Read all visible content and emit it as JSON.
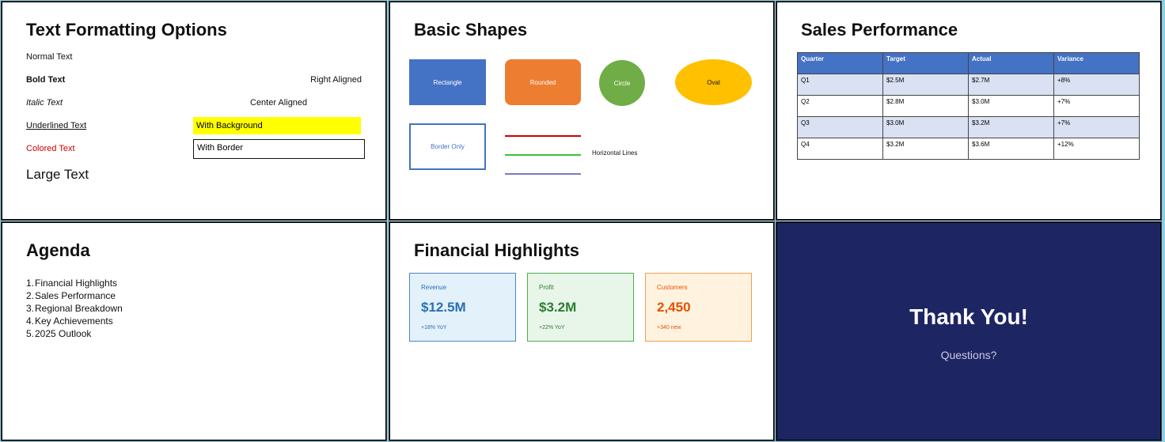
{
  "slide1": {
    "title": "Text Formatting Options",
    "normal": "Normal Text",
    "bold": "Bold Text",
    "italic": "Italic Text",
    "underlined": "Underlined Text",
    "colored": "Colored Text",
    "large": "Large Text",
    "right_aligned": "Right Aligned",
    "center_aligned": "Center Aligned",
    "with_background": "With Background",
    "with_border": "With Border"
  },
  "slide2": {
    "title": "Basic Shapes",
    "rectangle": "Rectangle",
    "rounded": "Rounded",
    "circle": "Circle",
    "oval": "Oval",
    "border_only": "Border Only",
    "horizontal_lines": "Horizontal Lines"
  },
  "slide3": {
    "title": "Sales Performance",
    "headers": [
      "Quarter",
      "Target",
      "Actual",
      "Variance"
    ],
    "rows": [
      [
        "Q1",
        "$2.5M",
        "$2.7M",
        "+8%"
      ],
      [
        "Q2",
        "$2.8M",
        "$3.0M",
        "+7%"
      ],
      [
        "Q3",
        "$3.0M",
        "$3.2M",
        "+7%"
      ],
      [
        "Q4",
        "$3.2M",
        "$3.6M",
        "+12%"
      ]
    ]
  },
  "slide4": {
    "title": "Agenda",
    "items": [
      {
        "num": "1.",
        "text": "Financial Highlights"
      },
      {
        "num": "2.",
        "text": "Sales Performance"
      },
      {
        "num": "3.",
        "text": "Regional Breakdown"
      },
      {
        "num": "4.",
        "text": "Key Achievements"
      },
      {
        "num": "5.",
        "text": "2025 Outlook"
      }
    ]
  },
  "slide5": {
    "title": "Financial Highlights",
    "cards": [
      {
        "label": "Revenue",
        "value": "$12.5M",
        "sub": "+18% YoY",
        "color": "#2a6fb5"
      },
      {
        "label": "Profit",
        "value": "$3.2M",
        "sub": "+22% YoY",
        "color": "#2e7d32"
      },
      {
        "label": "Customers",
        "value": "2,450",
        "sub": "+340 new",
        "color": "#e65100"
      }
    ]
  },
  "slide6": {
    "title": "Thank You!",
    "subtitle": "Questions?"
  }
}
